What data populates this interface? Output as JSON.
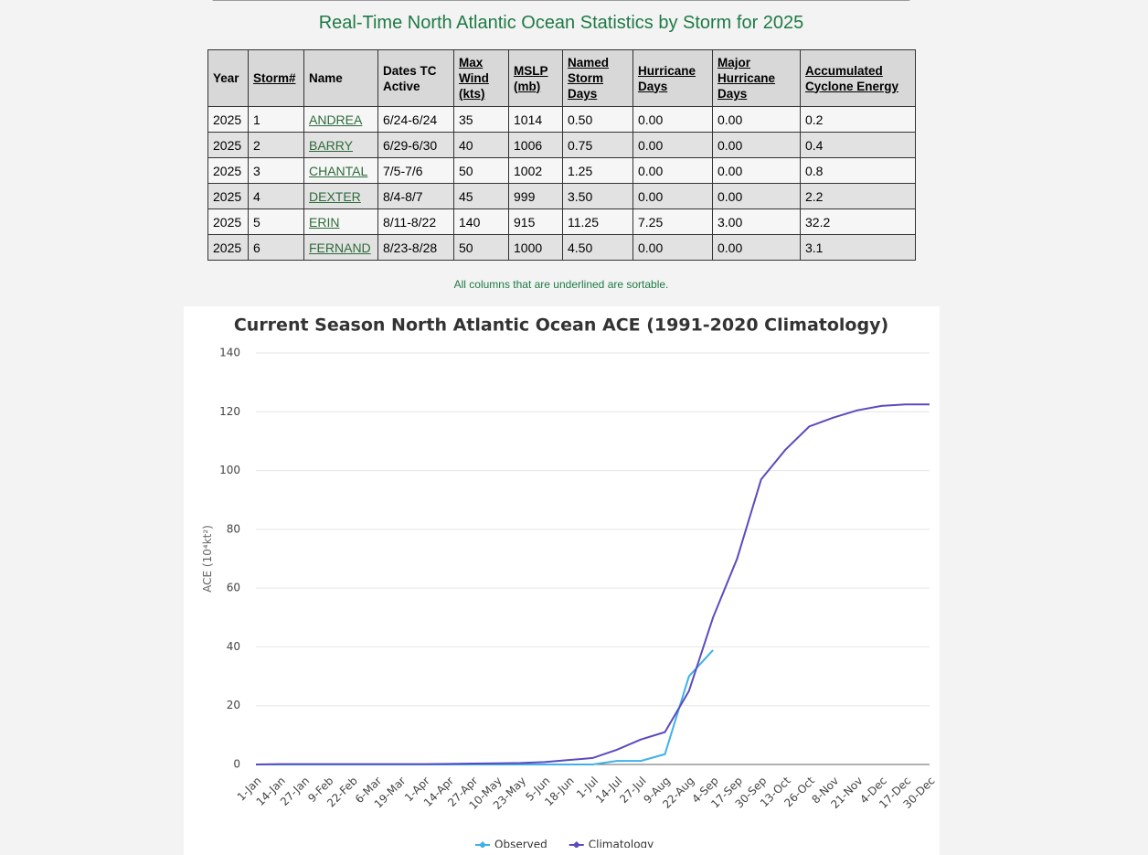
{
  "header": {
    "title": "Real-Time North Atlantic Ocean Statistics by Storm for 2025"
  },
  "table": {
    "headers": [
      "Year",
      "Storm#",
      "Name",
      "Dates TC Active",
      "Max Wind (kts)",
      "MSLP (mb)",
      "Named Storm Days",
      "Hurricane Days",
      "Major Hurricane Days",
      "Accumulated Cyclone Energy"
    ],
    "sortable": [
      false,
      true,
      false,
      false,
      true,
      true,
      true,
      true,
      true,
      true
    ],
    "rows": [
      [
        "2025",
        "1",
        "ANDREA",
        "6/24-6/24",
        "35",
        "1014",
        "0.50",
        "0.00",
        "0.00",
        "0.2"
      ],
      [
        "2025",
        "2",
        "BARRY",
        "6/29-6/30",
        "40",
        "1006",
        "0.75",
        "0.00",
        "0.00",
        "0.4"
      ],
      [
        "2025",
        "3",
        "CHANTAL",
        "7/5-7/6",
        "50",
        "1002",
        "1.25",
        "0.00",
        "0.00",
        "0.8"
      ],
      [
        "2025",
        "4",
        "DEXTER",
        "8/4-8/7",
        "45",
        "999",
        "3.50",
        "0.00",
        "0.00",
        "2.2"
      ],
      [
        "2025",
        "5",
        "ERIN",
        "8/11-8/22",
        "140",
        "915",
        "11.25",
        "7.25",
        "3.00",
        "32.2"
      ],
      [
        "2025",
        "6",
        "FERNAND",
        "8/23-8/28",
        "50",
        "1000",
        "4.50",
        "0.00",
        "0.00",
        "3.1"
      ]
    ],
    "note": "All columns that are underlined are sortable."
  },
  "chart_data": {
    "type": "line",
    "title": "Current Season North Atlantic Ocean ACE (1991-2020 Climatology)",
    "y_label": "ACE (10⁴kt²)",
    "categories": [
      "1-Jan",
      "14-Jan",
      "27-Jan",
      "9-Feb",
      "22-Feb",
      "6-Mar",
      "19-Mar",
      "1-Apr",
      "14-Apr",
      "27-Apr",
      "10-May",
      "23-May",
      "5-Jun",
      "18-Jun",
      "1-Jul",
      "14-Jul",
      "27-Jul",
      "9-Aug",
      "22-Aug",
      "4-Sep",
      "17-Sep",
      "30-Sep",
      "13-Oct",
      "26-Oct",
      "8-Nov",
      "21-Nov",
      "4-Dec",
      "17-Dec",
      "30-Dec"
    ],
    "series": [
      {
        "name": "Observed",
        "color": "#3fb1ea",
        "values": [
          0,
          0,
          0,
          0,
          0,
          0,
          0,
          0,
          0,
          0,
          0,
          0,
          0,
          0,
          0,
          1.2,
          1.2,
          3.5,
          30,
          38.9,
          null,
          null,
          null,
          null,
          null,
          null,
          null,
          null,
          null
        ]
      },
      {
        "name": "Climatology",
        "color": "#5a4bbf",
        "values": [
          0,
          0.1,
          0.1,
          0.1,
          0.1,
          0.1,
          0.1,
          0.1,
          0.2,
          0.3,
          0.4,
          0.5,
          0.8,
          1.5,
          2.2,
          5,
          8.5,
          11,
          25,
          50,
          70,
          97,
          107,
          115,
          118,
          120.5,
          122,
          122.5,
          122.5
        ]
      }
    ],
    "ylim": [
      0,
      140
    ],
    "yticks": [
      0,
      20,
      40,
      60,
      80,
      100,
      120,
      140
    ],
    "grid": true
  }
}
